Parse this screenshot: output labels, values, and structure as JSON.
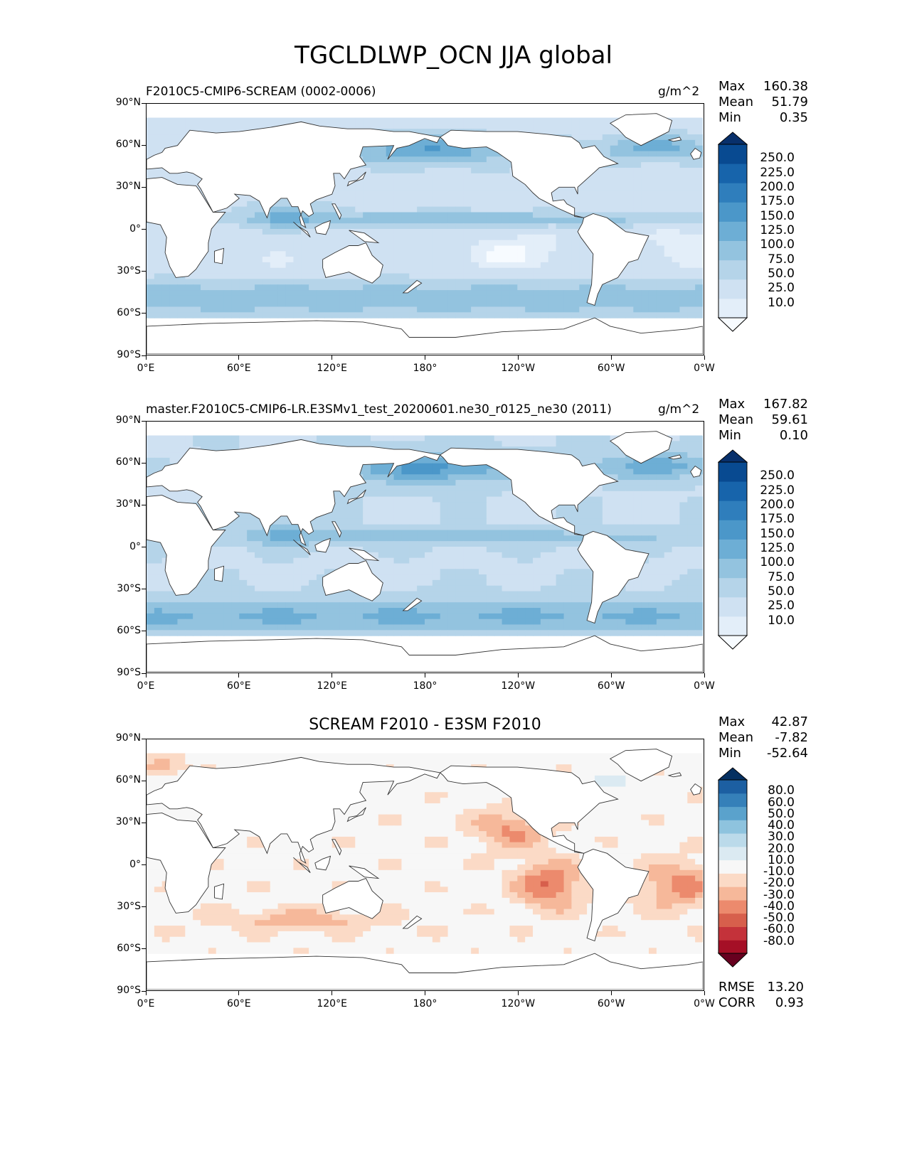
{
  "suptitle": "TGCLDLWP_OCN JJA global",
  "lat_ticks": [
    "90°N",
    "60°N",
    "30°N",
    "0°",
    "30°S",
    "60°S",
    "90°S"
  ],
  "lon_ticks": [
    "0°E",
    "60°E",
    "120°E",
    "180°",
    "120°W",
    "60°W",
    "0°W"
  ],
  "panels": [
    {
      "title": "F2010C5-CMIP6-SCREAM (0002-0006)",
      "units": "g/m^2",
      "stats": {
        "max_label": "Max",
        "max": "160.38",
        "mean_label": "Mean",
        "mean": "51.79",
        "min_label": "Min",
        "min": "0.35"
      },
      "colorbar": {
        "labels": [
          "250.0",
          "225.0",
          "200.0",
          "175.0",
          "150.0",
          "125.0",
          "100.0",
          "75.0",
          "50.0",
          "25.0",
          "10.0"
        ],
        "colors": [
          "#f7fbff",
          "#e3eef9",
          "#cfe1f2",
          "#b5d4e9",
          "#93c3df",
          "#6daed5",
          "#4b97c9",
          "#2f7ebc",
          "#1764ab",
          "#084a91",
          "#08306b"
        ]
      }
    },
    {
      "title": "master.F2010C5-CMIP6-LR.E3SMv1_test_20200601.ne30_r0125_ne30 (2011)",
      "units": "g/m^2",
      "stats": {
        "max_label": "Max",
        "max": "167.82",
        "mean_label": "Mean",
        "mean": "59.61",
        "min_label": "Min",
        "min": "0.10"
      },
      "colorbar": {
        "labels": [
          "250.0",
          "225.0",
          "200.0",
          "175.0",
          "150.0",
          "125.0",
          "100.0",
          "75.0",
          "50.0",
          "25.0",
          "10.0"
        ],
        "colors": [
          "#f7fbff",
          "#e3eef9",
          "#cfe1f2",
          "#b5d4e9",
          "#93c3df",
          "#6daed5",
          "#4b97c9",
          "#2f7ebc",
          "#1764ab",
          "#084a91",
          "#08306b"
        ]
      }
    },
    {
      "title": "SCREAM F2010 - E3SM F2010",
      "units": "",
      "stats": {
        "max_label": "Max",
        "max": "42.87",
        "mean_label": "Mean",
        "mean": "-7.82",
        "min_label": "Min",
        "min": "-52.64"
      },
      "colorbar": {
        "labels": [
          "80.0",
          "60.0",
          "50.0",
          "40.0",
          "30.0",
          "20.0",
          "10.0",
          "-10.0",
          "-20.0",
          "-30.0",
          "-40.0",
          "-50.0",
          "-60.0",
          "-80.0"
        ],
        "colors": [
          "#67001f",
          "#a50f26",
          "#c4323a",
          "#d75f4c",
          "#ec8a6d",
          "#f6b89a",
          "#fbdac6",
          "#f7f7f7",
          "#dbeaf2",
          "#bbdaea",
          "#8ec3de",
          "#5aa2cc",
          "#3580b9",
          "#1c5fa2",
          "#053061"
        ]
      },
      "rmse_label": "RMSE",
      "rmse": "13.20",
      "corr_label": "CORR",
      "corr": "0.93"
    }
  ]
}
